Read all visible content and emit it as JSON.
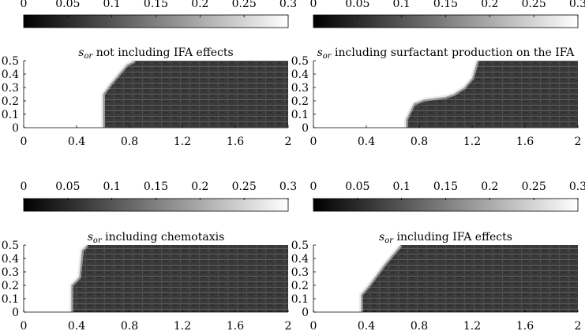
{
  "figure": {
    "colorbar": {
      "ticks": [
        "0",
        "0.05",
        "0.1",
        "0.15",
        "0.2",
        "0.25",
        "0.3"
      ],
      "range": [
        0,
        0.3
      ],
      "colormap": "grayscale"
    }
  },
  "chart_data": [
    {
      "type": "heatmap",
      "title_symbol": "s",
      "title_subscript": "or",
      "title": " not including IFA effects",
      "x_range": [
        0,
        2
      ],
      "y_range": [
        0,
        0.5
      ],
      "x_ticks": [
        "0",
        "0.4",
        "0.8",
        "1.2",
        "1.6",
        "2"
      ],
      "y_ticks": [
        "0",
        "0.1",
        "0.2",
        "0.3",
        "0.4",
        "0.5"
      ],
      "dark_value": 0.02,
      "empty_value": 0.3,
      "boundary": [
        [
          0.6,
          0.0
        ],
        [
          0.6,
          0.25
        ],
        [
          0.66,
          0.33
        ],
        [
          0.72,
          0.4
        ],
        [
          0.78,
          0.47
        ],
        [
          0.84,
          0.5
        ],
        [
          2.0,
          0.5
        ]
      ]
    },
    {
      "type": "heatmap",
      "title_symbol": "s",
      "title_subscript": "or",
      "title": " including surfactant production on the IFA",
      "x_range": [
        0,
        2
      ],
      "y_range": [
        0,
        0.5
      ],
      "x_ticks": [
        "0",
        "0.4",
        "0.8",
        "1.2",
        "1.6",
        "2"
      ],
      "y_ticks": [
        "0",
        "0.1",
        "0.2",
        "0.3",
        "0.4",
        "0.5"
      ],
      "dark_value": 0.02,
      "empty_value": 0.3,
      "boundary": [
        [
          0.7,
          0.0
        ],
        [
          0.7,
          0.06
        ],
        [
          0.76,
          0.18
        ],
        [
          0.84,
          0.21
        ],
        [
          0.92,
          0.22
        ],
        [
          1.0,
          0.23
        ],
        [
          1.06,
          0.25
        ],
        [
          1.14,
          0.3
        ],
        [
          1.2,
          0.37
        ],
        [
          1.24,
          0.5
        ],
        [
          2.0,
          0.5
        ]
      ]
    },
    {
      "type": "heatmap",
      "title_symbol": "s",
      "title_subscript": "or",
      "title": " including chemotaxis",
      "x_range": [
        0,
        2
      ],
      "y_range": [
        0,
        0.5
      ],
      "x_ticks": [
        "0",
        "0.4",
        "0.8",
        "1.2",
        "1.6",
        "2"
      ],
      "y_ticks": [
        "0",
        "0.1",
        "0.2",
        "0.3",
        "0.4",
        "0.5"
      ],
      "dark_value": 0.02,
      "empty_value": 0.3,
      "boundary": [
        [
          0.36,
          0.0
        ],
        [
          0.36,
          0.2
        ],
        [
          0.42,
          0.26
        ],
        [
          0.44,
          0.46
        ],
        [
          0.48,
          0.5
        ],
        [
          2.0,
          0.5
        ]
      ]
    },
    {
      "type": "heatmap",
      "title_symbol": "s",
      "title_subscript": "or",
      "title": " including IFA effects",
      "x_range": [
        0,
        2
      ],
      "y_range": [
        0,
        0.5
      ],
      "x_ticks": [
        "0",
        "0.4",
        "0.8",
        "1.2",
        "1.6",
        "2"
      ],
      "y_ticks": [
        "0",
        "0.1",
        "0.2",
        "0.3",
        "0.4",
        "0.5"
      ],
      "dark_value": 0.02,
      "empty_value": 0.3,
      "boundary": [
        [
          0.36,
          0.0
        ],
        [
          0.36,
          0.13
        ],
        [
          0.42,
          0.2
        ],
        [
          0.48,
          0.28
        ],
        [
          0.54,
          0.36
        ],
        [
          0.6,
          0.43
        ],
        [
          0.66,
          0.5
        ],
        [
          2.0,
          0.5
        ]
      ]
    }
  ]
}
